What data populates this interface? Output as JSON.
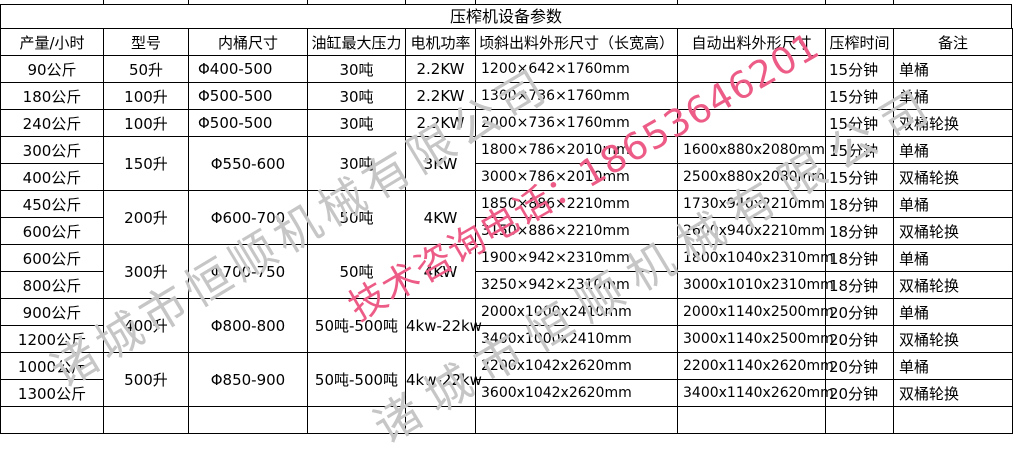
{
  "title": "压榨机设备参数",
  "watermarks": {
    "company": "诸城市恒顺机械有限公司",
    "phone": "技术咨询电话：18653646201",
    "phone_color": "#ed5c86",
    "company_color": "#c6c6c6"
  },
  "table": {
    "headers": [
      "产量/小时",
      "型号",
      "内桶尺寸",
      "油缸最大压力",
      "电机功率",
      "顷斜出料外形尺寸（长宽高）",
      "自动出料外形尺寸",
      "压榨时间",
      "备注"
    ],
    "rows": [
      [
        "90公斤",
        "50升",
        "Φ400-500",
        "30吨",
        "2.2KW",
        "1200×642×1760mm",
        "",
        "15分钟",
        "单桶"
      ],
      [
        "180公斤",
        "100升",
        "Φ500-500",
        "30吨",
        "2.2KW",
        "1300×736×1760mm",
        "",
        "15分钟",
        "单桶"
      ],
      [
        "240公斤",
        "100升",
        "Φ500-500",
        "30吨",
        "2.2KW",
        "2000×736×1760mm",
        "",
        "15分钟",
        "双桶轮换"
      ],
      [
        "300公斤",
        {
          "t": "150升",
          "rs": 2
        },
        {
          "t": "Φ550-600",
          "rs": 2
        },
        {
          "t": "30吨",
          "rs": 2
        },
        {
          "t": "3KW",
          "rs": 2
        },
        "1800×786×2010mm",
        "1600x880x2080mm",
        "15分钟",
        "单桶"
      ],
      [
        "400公斤",
        null,
        null,
        null,
        null,
        "3000×786×2010mm",
        "2500x880x2080mm",
        "15分钟",
        "双桶轮换"
      ],
      [
        "450公斤",
        {
          "t": "200升",
          "rs": 2
        },
        {
          "t": "Φ600-700",
          "rs": 2
        },
        {
          "t": "50吨",
          "rs": 2
        },
        {
          "t": "4KW",
          "rs": 2
        },
        "1850×886×2210mm",
        "1730x940x2210mm",
        "18分钟",
        "单桶"
      ],
      [
        "600公斤",
        null,
        null,
        null,
        null,
        "3150×886×2210mm",
        "2600x940x2210mm",
        "18分钟",
        "双桶轮换"
      ],
      [
        "600公斤",
        {
          "t": "300升",
          "rs": 2
        },
        {
          "t": "Φ700-750",
          "rs": 2
        },
        {
          "t": "50吨",
          "rs": 2
        },
        {
          "t": "4KW",
          "rs": 2
        },
        "1900×942×2310mm",
        "1800x1040x2310mm",
        "18分钟",
        "单桶"
      ],
      [
        "800公斤",
        null,
        null,
        null,
        null,
        "3250×942×2310mm",
        "3000x1010x2310mm",
        "18分钟",
        "双桶轮换"
      ],
      [
        "900公斤",
        {
          "t": "400升",
          "rs": 2
        },
        {
          "t": "Φ800-800",
          "rs": 2
        },
        {
          "t": "50吨-500吨",
          "rs": 2
        },
        {
          "t": "4kw-22kw",
          "rs": 2
        },
        "2000x1000x2410mm",
        "2000x1140x2500mm",
        "20分钟",
        "单桶"
      ],
      [
        "1200公斤",
        null,
        null,
        null,
        null,
        "3400x1000x2410mm",
        "3000x1140x2500mm",
        "20分钟",
        "双桶轮换"
      ],
      [
        "1000公斤",
        {
          "t": "500升",
          "rs": 2
        },
        {
          "t": "Φ850-900",
          "rs": 2
        },
        {
          "t": "50吨-500吨",
          "rs": 2
        },
        {
          "t": "4kw-22kw",
          "rs": 2
        },
        "2200x1042x2620mm",
        "2200x1140x2620mm",
        "20分钟",
        "单桶"
      ],
      [
        "1300公斤",
        null,
        null,
        null,
        null,
        "3600x1042x2620mm",
        "3400x1140x2620mm",
        "20分钟",
        "双桶轮换"
      ],
      [
        "",
        "",
        "",
        "",
        "",
        "",
        "",
        "",
        ""
      ]
    ]
  }
}
